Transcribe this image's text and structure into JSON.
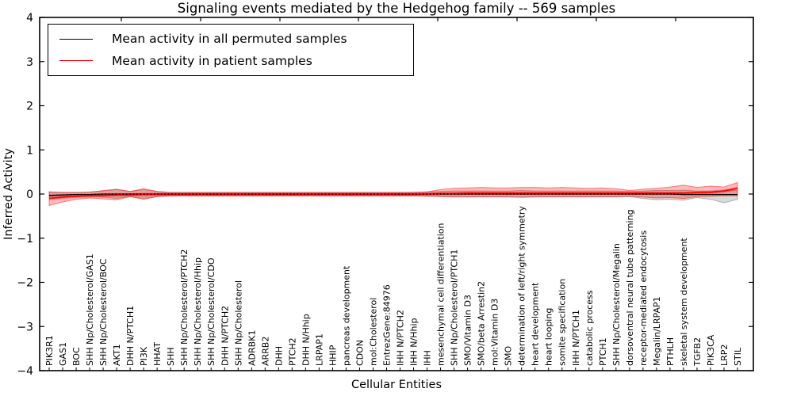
{
  "chart_data": {
    "type": "line",
    "title": "Signaling events mediated by the Hedgehog family -- 569 samples",
    "xlabel": "Cellular Entities",
    "ylabel": "Inferred Activity",
    "ylim": [
      -4,
      4
    ],
    "yticks": [
      -4,
      -3,
      -2,
      -1,
      0,
      1,
      2,
      3,
      4
    ],
    "grid": false,
    "legend_position": "upper left",
    "categories": [
      "PIK3R1",
      "GAS1",
      "BOC",
      "SHH Np/Cholesterol/GAS1",
      "SHH Np/Cholesterol/BOC",
      "AKT1",
      "DHH N/PTCH1",
      "PI3K",
      "HHAT",
      "SHH",
      "SHH Np/Cholesterol/PTCH2",
      "SHH Np/Cholesterol/Hhip",
      "SHH Np/Cholesterol/CDO",
      "DHH N/PTCH2",
      "SHH Np/Cholesterol",
      "ADRBK1",
      "ARRB2",
      "DHH",
      "PTCH2",
      "DHH N/Hhip",
      "LRPAP1",
      "HHIP",
      "pancreas development",
      "CDON",
      "mol:Cholesterol",
      "EntrezGene:84976",
      "IHH N/PTCH2",
      "IHH N/Hhip",
      "IHH",
      "mesenchymal cell differentiation",
      "SHH Np/Cholesterol/PTCH1",
      "SMO/Vitamin D3",
      "SMO/beta Arrestin2",
      "mol:Vitamin D3",
      "SMO",
      "determination of left/right symmetry",
      "heart development",
      "heart looping",
      "somite specification",
      "IHH N/PTCH1",
      "catabolic process",
      "PTCH1",
      "SHH Np/Cholesterol/Megalin",
      "dorsoventral neural tube patterning",
      "receptor-mediated endocytosis",
      "Megalin/LRPAP1",
      "PTHLH",
      "skeletal system development",
      "TGFB2",
      "PIK3CA",
      "LRP2",
      "STIL"
    ],
    "series": [
      {
        "name": "Mean activity in all permuted samples",
        "color": "#000000",
        "values": [
          -0.03,
          -0.02,
          -0.01,
          -0.01,
          0,
          0,
          0,
          0,
          0,
          0,
          0,
          0,
          0,
          0,
          0,
          0,
          0,
          0,
          0,
          0,
          0,
          0,
          0,
          0,
          0,
          0,
          0,
          0,
          0,
          0,
          0,
          0,
          0,
          0,
          0,
          0,
          0,
          0,
          0,
          0,
          0,
          0,
          0,
          0,
          0,
          0,
          0,
          -0.01,
          -0.01,
          -0.01,
          -0.01,
          -0.01
        ]
      },
      {
        "name": "Mean activity in patient samples",
        "color": "#ff0000",
        "values": [
          -0.1,
          -0.07,
          -0.05,
          -0.04,
          -0.03,
          -0.02,
          -0.02,
          -0.01,
          -0.01,
          -0.01,
          -0.01,
          -0.01,
          -0.01,
          -0.01,
          -0.01,
          -0.01,
          -0.01,
          -0.01,
          -0.01,
          -0.01,
          -0.01,
          -0.01,
          -0.01,
          -0.01,
          -0.01,
          -0.01,
          -0.01,
          -0.01,
          0,
          0.01,
          0.01,
          0.02,
          0.02,
          0.02,
          0.02,
          0.02,
          0.02,
          0.02,
          0.02,
          0.02,
          0.02,
          0.02,
          0.02,
          0.02,
          0.02,
          0.02,
          0.02,
          0.02,
          0.03,
          0.04,
          0.07,
          0.13
        ]
      }
    ],
    "bands": [
      {
        "name": "permuted-sample-range",
        "color": "rgba(0,0,0,0.15)",
        "stroke": "rgba(0,0,0,0.25)",
        "upper": [
          0.05,
          0.04,
          0.04,
          0.05,
          0.07,
          0.1,
          0.06,
          0.1,
          0.06,
          0.04,
          0.04,
          0.04,
          0.04,
          0.04,
          0.04,
          0.04,
          0.04,
          0.04,
          0.04,
          0.04,
          0.04,
          0.04,
          0.04,
          0.04,
          0.04,
          0.04,
          0.04,
          0.04,
          0.05,
          0.06,
          0.07,
          0.07,
          0.07,
          0.07,
          0.07,
          0.08,
          0.07,
          0.07,
          0.07,
          0.07,
          0.07,
          0.07,
          0.07,
          0.06,
          0.07,
          0.08,
          0.08,
          0.09,
          0.07,
          0.07,
          0.07,
          0.08
        ],
        "lower": [
          -0.06,
          -0.05,
          -0.05,
          -0.05,
          -0.07,
          -0.1,
          -0.06,
          -0.1,
          -0.06,
          -0.04,
          -0.04,
          -0.04,
          -0.04,
          -0.04,
          -0.04,
          -0.04,
          -0.04,
          -0.04,
          -0.04,
          -0.04,
          -0.04,
          -0.04,
          -0.04,
          -0.04,
          -0.04,
          -0.04,
          -0.04,
          -0.04,
          -0.05,
          -0.06,
          -0.07,
          -0.07,
          -0.07,
          -0.07,
          -0.07,
          -0.08,
          -0.07,
          -0.07,
          -0.07,
          -0.07,
          -0.07,
          -0.07,
          -0.07,
          -0.06,
          -0.1,
          -0.13,
          -0.12,
          -0.14,
          -0.08,
          -0.12,
          -0.2,
          -0.12
        ]
      },
      {
        "name": "patient-sample-range",
        "color": "rgba(255,0,0,0.27)",
        "stroke": "rgba(255,0,0,0.45)",
        "upper": [
          0.05,
          0.03,
          0.03,
          0.04,
          0.08,
          0.11,
          0.06,
          0.12,
          0.06,
          0.03,
          0.03,
          0.03,
          0.03,
          0.03,
          0.03,
          0.03,
          0.03,
          0.03,
          0.03,
          0.03,
          0.03,
          0.03,
          0.03,
          0.03,
          0.03,
          0.03,
          0.03,
          0.04,
          0.05,
          0.1,
          0.13,
          0.14,
          0.15,
          0.14,
          0.14,
          0.15,
          0.15,
          0.14,
          0.15,
          0.14,
          0.13,
          0.14,
          0.12,
          0.08,
          0.11,
          0.13,
          0.16,
          0.2,
          0.15,
          0.18,
          0.16,
          0.26
        ],
        "lower": [
          -0.26,
          -0.18,
          -0.12,
          -0.09,
          -0.11,
          -0.13,
          -0.06,
          -0.12,
          -0.06,
          -0.04,
          -0.04,
          -0.04,
          -0.04,
          -0.04,
          -0.04,
          -0.04,
          -0.04,
          -0.04,
          -0.04,
          -0.04,
          -0.04,
          -0.04,
          -0.04,
          -0.04,
          -0.04,
          -0.04,
          -0.04,
          -0.04,
          -0.05,
          -0.06,
          -0.06,
          -0.06,
          -0.06,
          -0.06,
          -0.06,
          -0.06,
          -0.06,
          -0.06,
          -0.06,
          -0.06,
          -0.06,
          -0.06,
          -0.06,
          -0.05,
          -0.07,
          -0.09,
          -0.08,
          -0.1,
          -0.06,
          -0.05,
          -0.04,
          -0.04
        ]
      }
    ]
  }
}
